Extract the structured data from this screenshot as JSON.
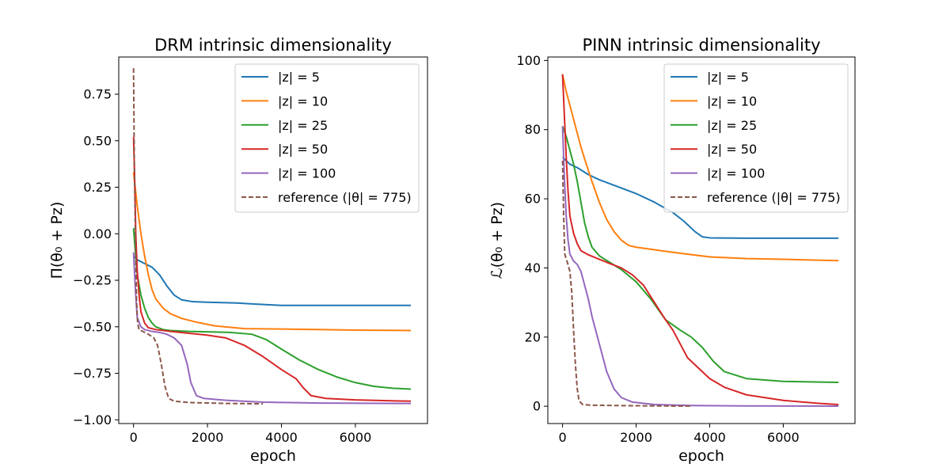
{
  "chart_data": [
    {
      "type": "line",
      "title": "DRM intrinsic dimensionality",
      "xlabel": "epoch",
      "ylabel": "Π(θ₀ + Pz)",
      "xlim": [
        -400,
        7950
      ],
      "ylim": [
        -1.02,
        0.95
      ],
      "xticks": [
        0,
        2000,
        4000,
        6000
      ],
      "xtick_labels": [
        "0",
        "2000",
        "4000",
        "6000"
      ],
      "yticks": [
        -1.0,
        -0.75,
        -0.5,
        -0.25,
        0.0,
        0.25,
        0.5,
        0.75
      ],
      "ytick_labels": [
        "−1.00",
        "−0.75",
        "−0.50",
        "−0.25",
        "0.00",
        "0.25",
        "0.50",
        "0.75"
      ],
      "legend_position": "upper right",
      "series": [
        {
          "name": "|z| = 5",
          "color": "#1f77b4",
          "dash": "solid",
          "points": [
            [
              0,
              -0.12
            ],
            [
              100,
              -0.14
            ],
            [
              300,
              -0.16
            ],
            [
              500,
              -0.18
            ],
            [
              700,
              -0.22
            ],
            [
              900,
              -0.28
            ],
            [
              1100,
              -0.33
            ],
            [
              1300,
              -0.355
            ],
            [
              1600,
              -0.365
            ],
            [
              2000,
              -0.368
            ],
            [
              2800,
              -0.372
            ],
            [
              3300,
              -0.378
            ],
            [
              4000,
              -0.385
            ],
            [
              5000,
              -0.385
            ],
            [
              6000,
              -0.385
            ],
            [
              7500,
              -0.385
            ]
          ]
        },
        {
          "name": "|z| = 10",
          "color": "#ff7f0e",
          "dash": "solid",
          "points": [
            [
              0,
              0.33
            ],
            [
              100,
              0.15
            ],
            [
              200,
              0.0
            ],
            [
              300,
              -0.12
            ],
            [
              400,
              -0.22
            ],
            [
              500,
              -0.3
            ],
            [
              600,
              -0.35
            ],
            [
              800,
              -0.4
            ],
            [
              1000,
              -0.43
            ],
            [
              1300,
              -0.455
            ],
            [
              1700,
              -0.475
            ],
            [
              2200,
              -0.495
            ],
            [
              3000,
              -0.51
            ],
            [
              4000,
              -0.512
            ],
            [
              5000,
              -0.515
            ],
            [
              6000,
              -0.518
            ],
            [
              7500,
              -0.52
            ]
          ]
        },
        {
          "name": "|z| = 25",
          "color": "#2ca02c",
          "dash": "solid",
          "points": [
            [
              0,
              0.03
            ],
            [
              50,
              -0.1
            ],
            [
              100,
              -0.22
            ],
            [
              200,
              -0.33
            ],
            [
              300,
              -0.4
            ],
            [
              400,
              -0.45
            ],
            [
              500,
              -0.48
            ],
            [
              600,
              -0.5
            ],
            [
              800,
              -0.515
            ],
            [
              1000,
              -0.52
            ],
            [
              1500,
              -0.525
            ],
            [
              2000,
              -0.527
            ],
            [
              2600,
              -0.53
            ],
            [
              3200,
              -0.54
            ],
            [
              3600,
              -0.57
            ],
            [
              4000,
              -0.62
            ],
            [
              4500,
              -0.68
            ],
            [
              5000,
              -0.73
            ],
            [
              5500,
              -0.77
            ],
            [
              6000,
              -0.8
            ],
            [
              6500,
              -0.82
            ],
            [
              7000,
              -0.83
            ],
            [
              7500,
              -0.835
            ]
          ]
        },
        {
          "name": "|z| = 50",
          "color": "#d62728",
          "dash": "solid",
          "points": [
            [
              0,
              0.52
            ],
            [
              30,
              0.3
            ],
            [
              60,
              0.0
            ],
            [
              100,
              -0.2
            ],
            [
              150,
              -0.33
            ],
            [
              200,
              -0.42
            ],
            [
              300,
              -0.48
            ],
            [
              400,
              -0.505
            ],
            [
              600,
              -0.515
            ],
            [
              1000,
              -0.525
            ],
            [
              1500,
              -0.535
            ],
            [
              2000,
              -0.545
            ],
            [
              2500,
              -0.56
            ],
            [
              3000,
              -0.6
            ],
            [
              3500,
              -0.66
            ],
            [
              4000,
              -0.73
            ],
            [
              4400,
              -0.78
            ],
            [
              4600,
              -0.83
            ],
            [
              4800,
              -0.87
            ],
            [
              5200,
              -0.885
            ],
            [
              6000,
              -0.893
            ],
            [
              7500,
              -0.9
            ]
          ]
        },
        {
          "name": "|z| = 100",
          "color": "#9467bd",
          "dash": "solid",
          "points": [
            [
              0,
              -0.1
            ],
            [
              50,
              -0.3
            ],
            [
              100,
              -0.45
            ],
            [
              200,
              -0.5
            ],
            [
              300,
              -0.515
            ],
            [
              500,
              -0.525
            ],
            [
              700,
              -0.53
            ],
            [
              900,
              -0.54
            ],
            [
              1100,
              -0.56
            ],
            [
              1300,
              -0.6
            ],
            [
              1450,
              -0.7
            ],
            [
              1550,
              -0.8
            ],
            [
              1700,
              -0.87
            ],
            [
              1900,
              -0.885
            ],
            [
              2500,
              -0.895
            ],
            [
              3500,
              -0.905
            ],
            [
              5000,
              -0.91
            ],
            [
              7500,
              -0.912
            ]
          ]
        },
        {
          "name": "reference (|θ| = 775)",
          "color": "#8c564b",
          "dash": "dashed",
          "points": [
            [
              0,
              0.89
            ],
            [
              20,
              0.4
            ],
            [
              50,
              0.0
            ],
            [
              80,
              -0.35
            ],
            [
              110,
              -0.48
            ],
            [
              150,
              -0.515
            ],
            [
              250,
              -0.525
            ],
            [
              400,
              -0.54
            ],
            [
              550,
              -0.56
            ],
            [
              650,
              -0.6
            ],
            [
              750,
              -0.7
            ],
            [
              850,
              -0.82
            ],
            [
              950,
              -0.885
            ],
            [
              1100,
              -0.9
            ],
            [
              1500,
              -0.907
            ],
            [
              2500,
              -0.912
            ],
            [
              3500,
              -0.914
            ]
          ]
        }
      ]
    },
    {
      "type": "line",
      "title": "PINN intrinsic dimensionality",
      "xlabel": "epoch",
      "ylabel": "ℒ(θ₀ + Pz)",
      "xlim": [
        -400,
        7950
      ],
      "ylim": [
        -5,
        101
      ],
      "xticks": [
        0,
        2000,
        4000,
        6000
      ],
      "xtick_labels": [
        "0",
        "2000",
        "4000",
        "6000"
      ],
      "yticks": [
        0,
        20,
        40,
        60,
        80,
        100
      ],
      "ytick_labels": [
        "0",
        "20",
        "40",
        "60",
        "80",
        "100"
      ],
      "legend_position": "upper right",
      "series": [
        {
          "name": "|z| = 5",
          "color": "#1f77b4",
          "dash": "solid",
          "points": [
            [
              0,
              72
            ],
            [
              100,
              71
            ],
            [
              200,
              70
            ],
            [
              400,
              69
            ],
            [
              700,
              67
            ],
            [
              1000,
              65.5
            ],
            [
              1500,
              63.5
            ],
            [
              2000,
              61.5
            ],
            [
              2500,
              59
            ],
            [
              3000,
              56
            ],
            [
              3300,
              53.5
            ],
            [
              3600,
              50.5
            ],
            [
              3800,
              49
            ],
            [
              4000,
              48.7
            ],
            [
              5000,
              48.6
            ],
            [
              6000,
              48.6
            ],
            [
              7500,
              48.6
            ]
          ]
        },
        {
          "name": "|z| = 10",
          "color": "#ff7f0e",
          "dash": "solid",
          "points": [
            [
              0,
              96
            ],
            [
              100,
              91
            ],
            [
              200,
              87
            ],
            [
              300,
              83
            ],
            [
              400,
              79
            ],
            [
              500,
              75
            ],
            [
              600,
              71.5
            ],
            [
              800,
              65
            ],
            [
              1000,
              59
            ],
            [
              1200,
              54
            ],
            [
              1400,
              50.5
            ],
            [
              1600,
              48
            ],
            [
              1800,
              46.5
            ],
            [
              2000,
              46
            ],
            [
              3000,
              44.5
            ],
            [
              4000,
              43.2
            ],
            [
              5000,
              42.7
            ],
            [
              6000,
              42.5
            ],
            [
              7500,
              42.1
            ]
          ]
        },
        {
          "name": "|z| = 25",
          "color": "#2ca02c",
          "dash": "solid",
          "points": [
            [
              0,
              81
            ],
            [
              100,
              78
            ],
            [
              200,
              74
            ],
            [
              300,
              70
            ],
            [
              400,
              65
            ],
            [
              500,
              59
            ],
            [
              600,
              53
            ],
            [
              700,
              49
            ],
            [
              800,
              46
            ],
            [
              1000,
              43.5
            ],
            [
              1300,
              41.5
            ],
            [
              1600,
              39.5
            ],
            [
              2000,
              36
            ],
            [
              2400,
              31
            ],
            [
              2800,
              25
            ],
            [
              3200,
              22
            ],
            [
              3500,
              20
            ],
            [
              3800,
              17
            ],
            [
              4100,
              13
            ],
            [
              4400,
              10
            ],
            [
              5000,
              8
            ],
            [
              6000,
              7.2
            ],
            [
              7500,
              6.9
            ]
          ]
        },
        {
          "name": "|z| = 50",
          "color": "#d62728",
          "dash": "solid",
          "points": [
            [
              0,
              96
            ],
            [
              50,
              84
            ],
            [
              100,
              72
            ],
            [
              150,
              62
            ],
            [
              200,
              55
            ],
            [
              300,
              50
            ],
            [
              400,
              47
            ],
            [
              500,
              45
            ],
            [
              700,
              43.8
            ],
            [
              1000,
              42.5
            ],
            [
              1300,
              41.2
            ],
            [
              1600,
              40
            ],
            [
              1900,
              38
            ],
            [
              2200,
              35
            ],
            [
              2500,
              30
            ],
            [
              2800,
              25
            ],
            [
              3000,
              22
            ],
            [
              3200,
              18
            ],
            [
              3400,
              14
            ],
            [
              3700,
              11
            ],
            [
              4000,
              8
            ],
            [
              4400,
              5.5
            ],
            [
              5000,
              3.3
            ],
            [
              6000,
              1.7
            ],
            [
              7000,
              0.8
            ],
            [
              7500,
              0.5
            ]
          ]
        },
        {
          "name": "|z| = 100",
          "color": "#9467bd",
          "dash": "solid",
          "points": [
            [
              0,
              81
            ],
            [
              50,
              66
            ],
            [
              100,
              55
            ],
            [
              150,
              48
            ],
            [
              200,
              44
            ],
            [
              300,
              42
            ],
            [
              400,
              41
            ],
            [
              500,
              39
            ],
            [
              600,
              35
            ],
            [
              700,
              31
            ],
            [
              800,
              26
            ],
            [
              1000,
              18
            ],
            [
              1200,
              10
            ],
            [
              1400,
              5
            ],
            [
              1600,
              2.5
            ],
            [
              1900,
              1.2
            ],
            [
              2500,
              0.5
            ],
            [
              3500,
              0.2
            ],
            [
              5000,
              0.1
            ],
            [
              7500,
              0.05
            ]
          ]
        },
        {
          "name": "reference (|θ| = 775)",
          "color": "#8c564b",
          "dash": "dashed",
          "points": [
            [
              0,
              71
            ],
            [
              30,
              55
            ],
            [
              60,
              44
            ],
            [
              120,
              42
            ],
            [
              200,
              39
            ],
            [
              250,
              33
            ],
            [
              300,
              22
            ],
            [
              350,
              12
            ],
            [
              400,
              5
            ],
            [
              450,
              1.5
            ],
            [
              550,
              0.5
            ],
            [
              800,
              0.3
            ],
            [
              1500,
              0.2
            ],
            [
              2500,
              0.1
            ],
            [
              3500,
              0.05
            ]
          ]
        }
      ]
    }
  ]
}
